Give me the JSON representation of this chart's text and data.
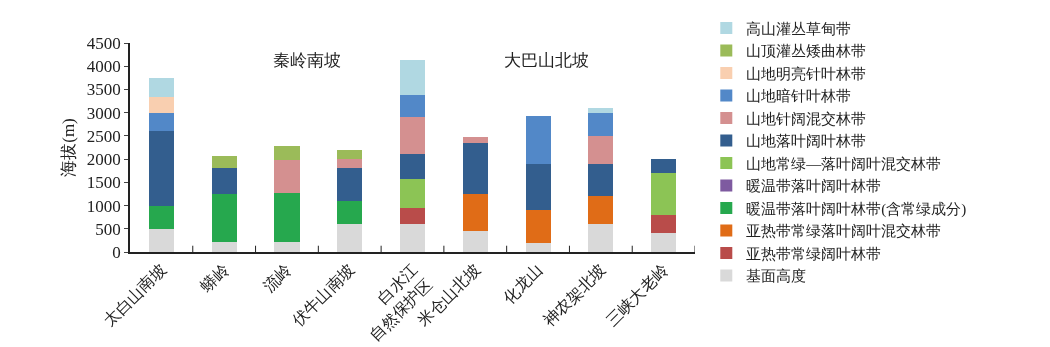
{
  "chart_data": {
    "type": "bar",
    "stacked": true,
    "ylabel": "海拔(m)",
    "annotations": [
      "秦岭南坡",
      "大巴山北坡"
    ],
    "categories": [
      "太白山南坡",
      "蟒岭",
      "流岭",
      "伏牛山南坡",
      "白水江\n自然保护区",
      "米仓山北坡",
      "化龙山",
      "神农架北坡",
      "三峡大老岭"
    ],
    "series": [
      {
        "name": "基面高度",
        "color": "#d9d9d9",
        "values": [
          500,
          210,
          210,
          610,
          600,
          460,
          200,
          610,
          400
        ]
      },
      {
        "name": "亚热带常绿阔叶林带",
        "color": "#b94c4a",
        "values": [
          null,
          null,
          null,
          null,
          340,
          null,
          null,
          null,
          400
        ]
      },
      {
        "name": "亚热带常绿落叶阔叶混交林带",
        "color": "#e06c17",
        "values": [
          null,
          null,
          null,
          null,
          null,
          790,
          700,
          590,
          null
        ]
      },
      {
        "name": "暖温带落叶阔叶林带(含常绿成分)",
        "color": "#26a84e",
        "values": [
          500,
          1040,
          1070,
          490,
          null,
          null,
          null,
          null,
          null
        ]
      },
      {
        "name": "暖温带落叶阔叶林带",
        "color": "#7e5aa0",
        "values": [
          null,
          null,
          null,
          null,
          null,
          null,
          null,
          null,
          null
        ]
      },
      {
        "name": "山地常绿—落叶阔叶混交林带",
        "color": "#8cc455",
        "values": [
          null,
          null,
          null,
          null,
          640,
          null,
          null,
          null,
          900
        ]
      },
      {
        "name": "山地落叶阔叶林带",
        "color": "#335e8e",
        "values": [
          1600,
          550,
          null,
          700,
          520,
          1100,
          1000,
          690,
          310
        ]
      },
      {
        "name": "山地针阔混交林带",
        "color": "#d49090",
        "values": [
          null,
          null,
          710,
          200,
          800,
          120,
          null,
          610,
          null
        ]
      },
      {
        "name": "山地暗针叶林带",
        "color": "#5288c8",
        "values": [
          400,
          null,
          null,
          null,
          490,
          null,
          1020,
          500,
          null
        ]
      },
      {
        "name": "山地明亮针叶林带",
        "color": "#f9cfb0",
        "values": [
          330,
          null,
          null,
          null,
          null,
          null,
          null,
          null,
          null
        ]
      },
      {
        "name": "山顶灌丛矮曲林带",
        "color": "#9bbb59",
        "values": [
          null,
          270,
          290,
          200,
          null,
          null,
          null,
          null,
          null
        ]
      },
      {
        "name": "高山灌丛草甸带",
        "color": "#b0d8e2",
        "values": [
          420,
          null,
          null,
          null,
          740,
          null,
          null,
          100,
          null
        ]
      }
    ],
    "ylim": [
      0,
      4500
    ],
    "yticks": [
      0,
      500,
      1000,
      1500,
      2000,
      2500,
      3000,
      3500,
      4000,
      4500
    ],
    "grid": false,
    "legend": "right"
  }
}
